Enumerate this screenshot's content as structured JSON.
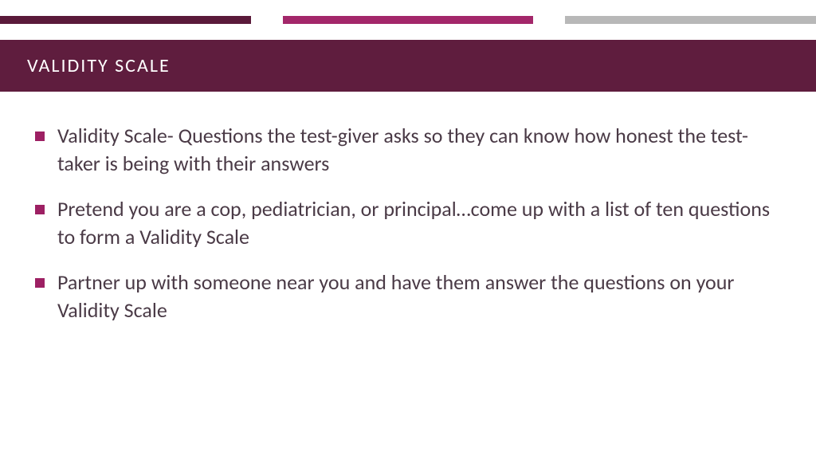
{
  "colors": {
    "bar1": "#5a1a3a",
    "bar2": "#a3276a",
    "bar3": "#b8b8b8",
    "title_band_bg": "#5f1d3e",
    "title_text": "#ffffff",
    "body_text": "#4a3a46",
    "bullet_marker": "#9d2063",
    "background": "#ffffff"
  },
  "title": "VALIDITY SCALE",
  "bullets": [
    "Validity Scale- Questions the test-giver asks so they can know how honest the test-taker is being with their answers",
    "Pretend you are a cop, pediatrician, or principal…come up with a list of ten questions to form a Validity Scale",
    "Partner up with someone near you and have them answer the questions on your Validity Scale"
  ],
  "typography": {
    "title_fontsize": 24,
    "body_fontsize": 26
  }
}
